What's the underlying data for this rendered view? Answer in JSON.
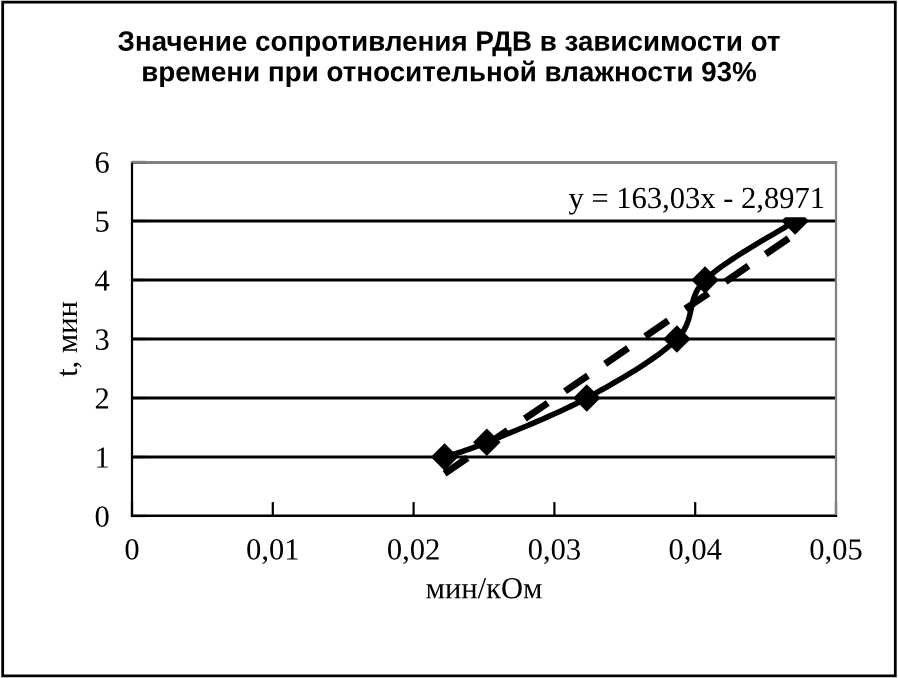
{
  "chart_data": {
    "type": "line",
    "title": "Значение сопротивления РДВ в зависимости от\nвремени при относительной влажности 93%",
    "xlabel": "мин/кОм",
    "ylabel": "t, мин",
    "series": [
      {
        "color": "#000000",
        "marker": "diamond",
        "line_style": "solid",
        "x": [
          0.0222,
          0.0252,
          0.0323,
          0.0387,
          0.0407,
          0.0471
        ],
        "values": [
          1,
          1.25,
          2,
          3,
          4,
          5
        ]
      },
      {
        "color": "#000000",
        "marker": "none",
        "line_style": "dashed",
        "x": [
          0.0222,
          0.0471
        ],
        "values": [
          0.72,
          4.78
        ]
      }
    ],
    "annotations": [
      "y = 163,03x - 2,8971"
    ],
    "xlim": [
      0,
      0.05
    ],
    "xticks": [
      0,
      {
        "value": 0.01,
        "label": "0,01"
      },
      {
        "value": 0.02,
        "label": "0,02"
      },
      {
        "value": 0.03,
        "label": "0,03"
      },
      {
        "value": 0.04,
        "label": "0,04"
      },
      {
        "value": 0.05,
        "label": "0,05"
      }
    ],
    "ylim": [
      0,
      6
    ],
    "yticks": [
      0,
      1,
      2,
      3,
      4,
      5,
      6
    ],
    "grid": "y",
    "legend": false
  }
}
